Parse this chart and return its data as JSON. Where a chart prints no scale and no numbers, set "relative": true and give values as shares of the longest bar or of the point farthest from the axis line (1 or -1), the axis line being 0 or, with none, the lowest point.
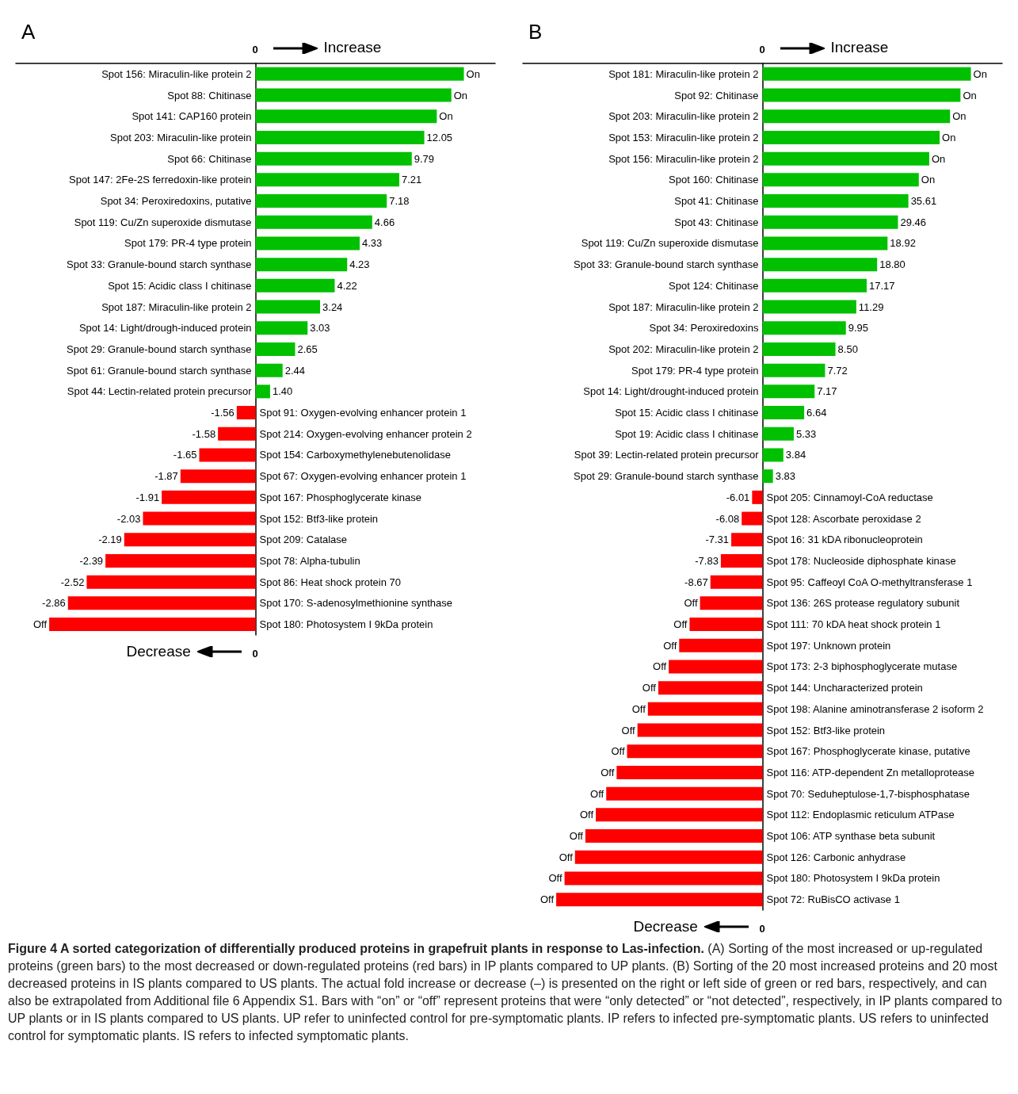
{
  "chart_data": [
    {
      "type": "bar",
      "title": "A",
      "orientation": "horizontal",
      "relative": true,
      "annotations": [
        "0",
        "Increase",
        "Decrease",
        "0",
        {
          "text": "On",
          "x": 1,
          "y": "Spot 156: Miraculin-like protein 2"
        },
        {
          "text": "On",
          "x": 0.94,
          "y": "Spot 88: Chitinase"
        },
        {
          "text": "On",
          "x": 0.87,
          "y": "Spot 141: CAP160 protein"
        },
        {
          "text": "12.05",
          "x": 0.81,
          "y": "Spot 203: Miraculin-like protein"
        },
        {
          "text": "9.79",
          "x": 0.75,
          "y": "Spot 66: Chitinase"
        },
        {
          "text": "7.21",
          "x": 0.69,
          "y": "Spot 147: 2Fe-2S ferredoxin-like protein"
        },
        {
          "text": "7.18",
          "x": 0.63,
          "y": "Spot 34: Peroxiredoxins, putative"
        },
        {
          "text": "4.66",
          "x": 0.56,
          "y": "Spot 119: Cu/Zn superoxide dismutase"
        },
        {
          "text": "4.33",
          "x": 0.5,
          "y": "Spot 179: PR-4 type protein"
        },
        {
          "text": "4.23",
          "x": 0.44,
          "y": "Spot 33: Granule-bound starch synthase"
        },
        {
          "text": "4.22",
          "x": 0.38,
          "y": "Spot 15: Acidic class I chitinase"
        },
        {
          "text": "3.24",
          "x": 0.31,
          "y": "Spot 187: Miraculin-like protein 2"
        },
        {
          "text": "3.03",
          "x": 0.25,
          "y": "Spot 14: Light/drough-induced protein"
        },
        {
          "text": "2.65",
          "x": 0.19,
          "y": "Spot 29: Granule-bound starch synthase"
        },
        {
          "text": "2.44",
          "x": 0.13,
          "y": "Spot 61: Granule-bound starch synthase"
        },
        {
          "text": "1.40",
          "x": 0.07,
          "y": "Spot 44: Lectin-related protein precursor"
        },
        {
          "text": "-1.56",
          "x": -0.09,
          "y": "Spot 91: Oxygen-evolving enhancer protein 1"
        },
        {
          "text": "-1.58",
          "x": -0.18,
          "y": "Spot 214: Oxygen-evolving enhancer protein 2"
        },
        {
          "text": "-1.65",
          "x": -0.27,
          "y": "Spot 154: Carboxymethylenebutenolidase"
        },
        {
          "text": "-1.87",
          "x": -0.36,
          "y": "Spot 67: Oxygen-evolving enhancer protein 1"
        },
        {
          "text": "-1.91",
          "x": -0.45,
          "y": "Spot 167: Phosphoglycerate kinase"
        },
        {
          "text": "-2.03",
          "x": -0.54,
          "y": "Spot 152: Btf3-like protein"
        },
        {
          "text": "-2.19",
          "x": -0.63,
          "y": "Spot 209: Catalase"
        },
        {
          "text": "-2.39",
          "x": -0.72,
          "y": "Spot 78: Alpha-tubulin"
        },
        {
          "text": "-2.52",
          "x": -0.81,
          "y": "Spot 86: Heat shock protein 70"
        },
        {
          "text": "-2.86",
          "x": -0.9,
          "y": "Spot 170: S-adenosylmethionine synthase"
        },
        {
          "text": "Off",
          "x": -0.99,
          "y": "Spot 180: Photosystem I 9kDa protein"
        }
      ],
      "categories": [
        "Spot 156: Miraculin-like protein 2",
        "Spot 88: Chitinase",
        "Spot 141: CAP160 protein",
        "Spot 203: Miraculin-like protein",
        "Spot 66: Chitinase",
        "Spot 147: 2Fe-2S ferredoxin-like protein",
        "Spot 34: Peroxiredoxins, putative",
        "Spot 119: Cu/Zn superoxide dismutase",
        "Spot 179: PR-4 type protein",
        "Spot 33: Granule-bound starch synthase",
        "Spot 15: Acidic class I chitinase",
        "Spot 187: Miraculin-like protein 2",
        "Spot 14: Light/drough-induced protein",
        "Spot 29: Granule-bound starch synthase",
        "Spot 61: Granule-bound starch synthase",
        "Spot 44: Lectin-related protein precursor",
        "Spot 91: Oxygen-evolving enhancer protein 1",
        "Spot 214: Oxygen-evolving enhancer protein 2",
        "Spot 154: Carboxymethylenebutenolidase",
        "Spot 67: Oxygen-evolving enhancer protein 1",
        "Spot 167: Phosphoglycerate kinase",
        "Spot 152: Btf3-like protein",
        "Spot 209: Catalase",
        "Spot 78: Alpha-tubulin",
        "Spot 86: Heat shock protein 70",
        "Spot 170: S-adenosylmethionine synthase",
        "Spot 180: Photosystem I 9kDa protein"
      ],
      "values": [
        1,
        0.94,
        0.87,
        0.81,
        0.75,
        0.69,
        0.63,
        0.56,
        0.5,
        0.44,
        0.38,
        0.31,
        0.25,
        0.19,
        0.13,
        0.07,
        -0.09,
        -0.18,
        -0.27,
        -0.36,
        -0.45,
        -0.54,
        -0.63,
        -0.72,
        -0.81,
        -0.9,
        -0.99
      ],
      "colors": [
        "#00c000",
        "#00c000",
        "#00c000",
        "#00c000",
        "#00c000",
        "#00c000",
        "#00c000",
        "#00c000",
        "#00c000",
        "#00c000",
        "#00c000",
        "#00c000",
        "#00c000",
        "#00c000",
        "#00c000",
        "#00c000",
        "#ff0000",
        "#ff0000",
        "#ff0000",
        "#ff0000",
        "#ff0000",
        "#ff0000",
        "#ff0000",
        "#ff0000",
        "#ff0000",
        "#ff0000",
        "#ff0000"
      ]
    },
    {
      "type": "bar",
      "title": "B",
      "orientation": "horizontal",
      "relative": true,
      "annotations": [
        "0",
        "Increase",
        "Decrease",
        "0",
        {
          "text": "On",
          "x": 1,
          "y": "Spot 181: Miraculin-like protein 2"
        },
        {
          "text": "On",
          "x": 0.95,
          "y": "Spot 92: Chitinase"
        },
        {
          "text": "On",
          "x": 0.9,
          "y": "Spot 203: Miraculin-like protein 2"
        },
        {
          "text": "On",
          "x": 0.85,
          "y": "Spot 153: Miraculin-like protein 2"
        },
        {
          "text": "On",
          "x": 0.8,
          "y": "Spot 156: Miraculin-like protein 2"
        },
        {
          "text": "On",
          "x": 0.75,
          "y": "Spot 160: Chitinase"
        },
        {
          "text": "35.61",
          "x": 0.7,
          "y": "Spot 41: Chitinase"
        },
        {
          "text": "29.46",
          "x": 0.65,
          "y": "Spot 43: Chitinase"
        },
        {
          "text": "18.92",
          "x": 0.6,
          "y": "Spot 119: Cu/Zn superoxide dismutase"
        },
        {
          "text": "18.80",
          "x": 0.55,
          "y": "Spot 33: Granule-bound starch synthase"
        },
        {
          "text": "17.17",
          "x": 0.5,
          "y": "Spot 124: Chitinase"
        },
        {
          "text": "11.29",
          "x": 0.45,
          "y": "Spot 187: Miraculin-like protein 2"
        },
        {
          "text": "9.95",
          "x": 0.4,
          "y": "Spot 34: Peroxiredoxins"
        },
        {
          "text": "8.50",
          "x": 0.35,
          "y": "Spot 202: Miraculin-like protein 2"
        },
        {
          "text": "7.72",
          "x": 0.3,
          "y": "Spot 179: PR-4 type protein"
        },
        {
          "text": "7.17",
          "x": 0.25,
          "y": "Spot 14: Light/drought-induced protein"
        },
        {
          "text": "6.64",
          "x": 0.2,
          "y": "Spot 15: Acidic class I chitinase"
        },
        {
          "text": "5.33",
          "x": 0.15,
          "y": "Spot 19: Acidic class I chitinase"
        },
        {
          "text": "3.84",
          "x": 0.1,
          "y": "Spot 39: Lectin-related protein precursor"
        },
        {
          "text": "3.83",
          "x": 0.05,
          "y": "Spot 29: Granule-bound starch synthase"
        },
        {
          "text": "-6.01",
          "x": -0.05,
          "y": "Spot 205: Cinnamoyl-CoA reductase"
        },
        {
          "text": "-6.08",
          "x": -0.1,
          "y": "Spot 128: Ascorbate peroxidase 2"
        },
        {
          "text": "-7.31",
          "x": -0.15,
          "y": "Spot 16: 31 kDA ribonucleoprotein"
        },
        {
          "text": "-7.83",
          "x": -0.2,
          "y": "Spot 178: Nucleoside diphosphate kinase"
        },
        {
          "text": "-8.67",
          "x": -0.25,
          "y": "Spot 95: Caffeoyl CoA O-methyltransferase 1"
        },
        {
          "text": "Off",
          "x": -0.3,
          "y": "Spot 136: 26S protease regulatory subunit"
        },
        {
          "text": "Off",
          "x": -0.35,
          "y": "Spot 111: 70 kDA heat shock protein 1"
        },
        {
          "text": "Off",
          "x": -0.4,
          "y": "Spot 197: Unknown protein"
        },
        {
          "text": "Off",
          "x": -0.45,
          "y": "Spot 173: 2-3 biphosphoglycerate mutase"
        },
        {
          "text": "Off",
          "x": -0.5,
          "y": "Spot 144: Uncharacterized protein"
        },
        {
          "text": "Off",
          "x": -0.55,
          "y": "Spot 198: Alanine aminotransferase 2 isoform 2"
        },
        {
          "text": "Off",
          "x": -0.6,
          "y": "Spot 152: Btf3-like protein"
        },
        {
          "text": "Off",
          "x": -0.65,
          "y": "Spot 167: Phosphoglycerate kinase, putative"
        },
        {
          "text": "Off",
          "x": -0.7,
          "y": "Spot 116: ATP-dependent Zn metalloprotease"
        },
        {
          "text": "Off",
          "x": -0.75,
          "y": "Spot 70: Seduheptulose-1,7-bisphosphatase"
        },
        {
          "text": "Off",
          "x": -0.8,
          "y": "Spot 112: Endoplasmic reticulum ATPase"
        },
        {
          "text": "Off",
          "x": -0.85,
          "y": "Spot 106: ATP synthase beta subunit"
        },
        {
          "text": "Off",
          "x": -0.9,
          "y": "Spot 126: Carbonic anhydrase"
        },
        {
          "text": "Off",
          "x": -0.95,
          "y": "Spot 180: Photosystem I 9kDa protein"
        },
        {
          "text": "Off",
          "x": -0.99,
          "y": "Spot 72: RuBisCO activase 1"
        }
      ],
      "categories": [
        "Spot 181: Miraculin-like protein 2",
        "Spot 92: Chitinase",
        "Spot 203: Miraculin-like protein 2",
        "Spot 153: Miraculin-like protein 2",
        "Spot 156: Miraculin-like protein 2",
        "Spot 160: Chitinase",
        "Spot 41: Chitinase",
        "Spot 43: Chitinase",
        "Spot 119: Cu/Zn superoxide dismutase",
        "Spot 33: Granule-bound starch synthase",
        "Spot 124: Chitinase",
        "Spot 187: Miraculin-like protein 2",
        "Spot 34: Peroxiredoxins",
        "Spot 202: Miraculin-like protein 2",
        "Spot 179: PR-4 type protein",
        "Spot 14: Light/drought-induced protein",
        "Spot 15: Acidic class I chitinase",
        "Spot 19: Acidic class I chitinase",
        "Spot 39: Lectin-related protein precursor",
        "Spot 29: Granule-bound starch synthase",
        "Spot 205: Cinnamoyl-CoA reductase",
        "Spot 128: Ascorbate peroxidase 2",
        "Spot 16: 31 kDA ribonucleoprotein",
        "Spot 178: Nucleoside diphosphate kinase",
        "Spot 95: Caffeoyl CoA O-methyltransferase 1",
        "Spot 136: 26S protease regulatory subunit",
        "Spot 111: 70 kDA heat shock protein 1",
        "Spot 197: Unknown protein",
        "Spot 173: 2-3 biphosphoglycerate mutase",
        "Spot 144: Uncharacterized protein",
        "Spot 198: Alanine aminotransferase 2 isoform 2",
        "Spot 152: Btf3-like protein",
        "Spot 167: Phosphoglycerate kinase, putative",
        "Spot 116: ATP-dependent Zn metalloprotease",
        "Spot 70: Seduheptulose-1,7-bisphosphatase",
        "Spot 112: Endoplasmic reticulum ATPase",
        "Spot 106: ATP synthase beta subunit",
        "Spot 126: Carbonic anhydrase",
        "Spot 180: Photosystem I 9kDa protein",
        "Spot 72: RuBisCO activase 1"
      ],
      "values": [
        1,
        0.95,
        0.9,
        0.85,
        0.8,
        0.75,
        0.7,
        0.65,
        0.6,
        0.55,
        0.5,
        0.45,
        0.4,
        0.35,
        0.3,
        0.25,
        0.2,
        0.15,
        0.1,
        0.05,
        -0.05,
        -0.1,
        -0.15,
        -0.2,
        -0.25,
        -0.3,
        -0.35,
        -0.4,
        -0.45,
        -0.5,
        -0.55,
        -0.6,
        -0.65,
        -0.7,
        -0.75,
        -0.8,
        -0.85,
        -0.9,
        -0.95,
        -0.99
      ],
      "colors": [
        "#00c000",
        "#00c000",
        "#00c000",
        "#00c000",
        "#00c000",
        "#00c000",
        "#00c000",
        "#00c000",
        "#00c000",
        "#00c000",
        "#00c000",
        "#00c000",
        "#00c000",
        "#00c000",
        "#00c000",
        "#00c000",
        "#00c000",
        "#00c000",
        "#00c000",
        "#00c000",
        "#ff0000",
        "#ff0000",
        "#ff0000",
        "#ff0000",
        "#ff0000",
        "#ff0000",
        "#ff0000",
        "#ff0000",
        "#ff0000",
        "#ff0000",
        "#ff0000",
        "#ff0000",
        "#ff0000",
        "#ff0000",
        "#ff0000",
        "#ff0000",
        "#ff0000",
        "#ff0000",
        "#ff0000",
        "#ff0000"
      ]
    },
    {
      "type": "other",
      "title": "Figure 4 A sorted categorization of differentially produced proteins in grapefruit plants in response to Las-infection.",
      "annotations": [
        "(A) Sorting of the most increased or up-regulated proteins (green bars) to the most decreased or down-regulated proteins (red bars) in IP plants compared to UP plants. (B) Sorting of the 20 most increased proteins and 20 most decreased proteins in IS plants compared to US plants. The actual fold increase or decrease (–) is presented on the right or left side of green or red bars, respectively, and can also be extrapolated from Additional file 6 Appendix S1. Bars with “on” or “off” represent proteins that were “only detected” or “not detected”, respectively, in IP plants compared to UP plants or in IS plants compared to US plants. UP refer to uninfected control for pre-symptomatic plants. IP refers to infected pre-symptomatic plants. US refers to uninfected control for symptomatic plants. IS refers to infected symptomatic plants."
      ]
    }
  ]
}
